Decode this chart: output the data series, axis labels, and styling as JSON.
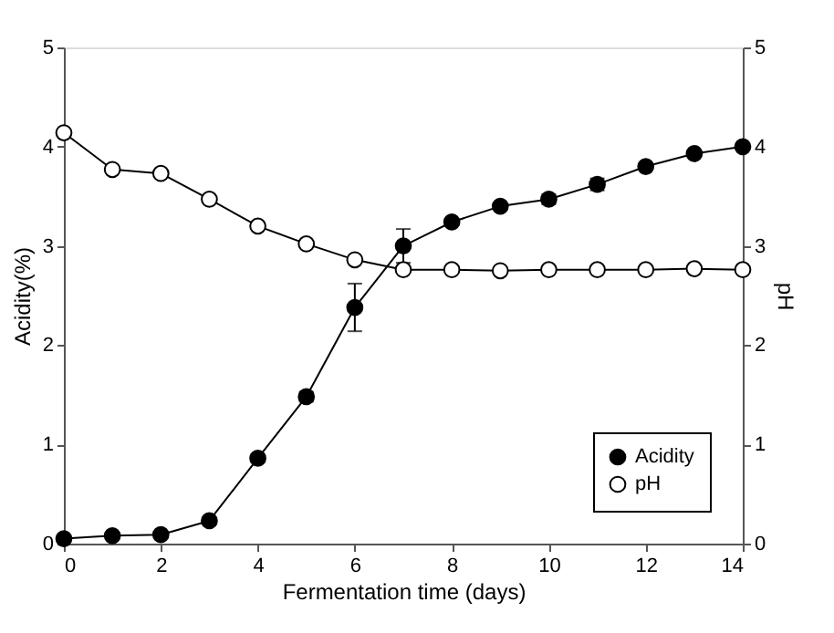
{
  "chart_data": {
    "type": "line",
    "xlabel": "Fermentation time (days)",
    "ylabel": "Acidity(%)",
    "y2label": "pH",
    "x": [
      0,
      1,
      2,
      3,
      4,
      5,
      6,
      7,
      8,
      9,
      10,
      11,
      12,
      13,
      14
    ],
    "xlim": [
      0,
      14
    ],
    "xticks": [
      0,
      2,
      4,
      6,
      8,
      10,
      12,
      14
    ],
    "ylim": [
      0,
      5
    ],
    "yticks": [
      0,
      1,
      2,
      3,
      4,
      5
    ],
    "y2lim": [
      0,
      5
    ],
    "y2ticks": [
      0,
      1,
      2,
      3,
      4,
      5
    ],
    "marker": "circle",
    "grid": false,
    "legend": "bottom right",
    "series": [
      {
        "name": "Acidity",
        "color": "#000000",
        "values": [
          0.05,
          0.08,
          0.09,
          0.23,
          0.86,
          1.48,
          2.38,
          3.0,
          3.24,
          3.4,
          3.47,
          3.62,
          3.8,
          3.93,
          4.0
        ],
        "errors": [
          null,
          null,
          null,
          null,
          0.04,
          0.05,
          0.24,
          0.17,
          null,
          null,
          0.05,
          0.06,
          null,
          null,
          null
        ]
      },
      {
        "name": "pH",
        "color": "#ffffff",
        "axis": "y2",
        "values": [
          4.14,
          3.77,
          3.73,
          3.47,
          3.2,
          3.02,
          2.86,
          2.76,
          2.76,
          2.75,
          2.76,
          2.76,
          2.76,
          2.77,
          2.76
        ],
        "errors": [
          null,
          null,
          null,
          null,
          0.03,
          null,
          0.03,
          null,
          null,
          null,
          null,
          null,
          null,
          null,
          null
        ]
      }
    ]
  }
}
